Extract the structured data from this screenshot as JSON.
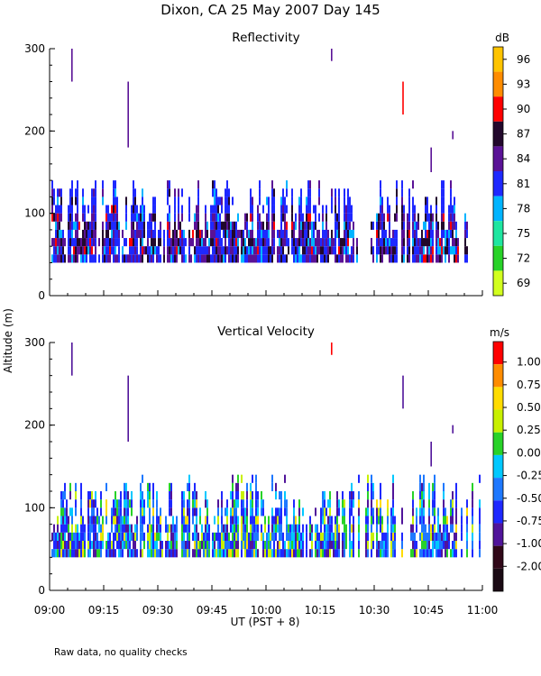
{
  "page": {
    "title": "Dixon, CA 25 May 2007  Day 145",
    "shared_ylabel": "Altitude (m)",
    "xlabel": "UT  (PST + 8)",
    "footnote": "Raw data, no quality checks"
  },
  "chart_data": [
    {
      "type": "heatmap",
      "title": "Reflectivity",
      "ylabel": "Altitude (m)",
      "xlabel": "UT  (PST + 8)",
      "x_range": [
        "09:00",
        "11:00"
      ],
      "x_ticks": [
        "09:00",
        "09:15",
        "09:30",
        "09:45",
        "10:00",
        "10:15",
        "10:30",
        "10:45",
        "11:00"
      ],
      "y_ticks": [
        0,
        100,
        200,
        300
      ],
      "ylim": [
        0,
        300
      ],
      "colorbar": {
        "unit": "dB",
        "levels": [
          96,
          93,
          90,
          87,
          84,
          81,
          78,
          75,
          72,
          69
        ],
        "colors": [
          "#ffc400",
          "#ff8c00",
          "#ff0000",
          "#22082c",
          "#5a1296",
          "#1e28ff",
          "#00b4ff",
          "#1ee6a0",
          "#28d228",
          "#d2ff1e"
        ]
      },
      "description_values": {
        "main_echo_altitude_range_m": [
          40,
          140
        ],
        "sparse_echo_altitudes_m": [
          200,
          260,
          290
        ]
      }
    },
    {
      "type": "heatmap",
      "title": "Vertical Velocity",
      "ylabel": "Altitude (m)",
      "xlabel": "UT  (PST + 8)",
      "x_range": [
        "09:00",
        "11:00"
      ],
      "x_ticks": [
        "09:00",
        "09:15",
        "09:30",
        "09:45",
        "10:00",
        "10:15",
        "10:30",
        "10:45",
        "11:00"
      ],
      "y_ticks": [
        0,
        100,
        200,
        300
      ],
      "ylim": [
        0,
        300
      ],
      "colorbar": {
        "unit": "m/s",
        "levels": [
          "1.00",
          "0.75",
          "0.50",
          "0.25",
          "0.00",
          "-0.25",
          "-0.50",
          "-0.75",
          "-1.00",
          "-2.00"
        ],
        "colors": [
          "#ff0000",
          "#ff8c00",
          "#ffdc00",
          "#c8f000",
          "#28d228",
          "#00c8ff",
          "#1e78ff",
          "#1e28ff",
          "#50149a",
          "#300818",
          "#1a0a14"
        ]
      },
      "description_values": {
        "main_echo_altitude_range_m": [
          40,
          140
        ],
        "sparse_echo_altitudes_m": [
          200,
          260,
          290
        ]
      }
    }
  ]
}
